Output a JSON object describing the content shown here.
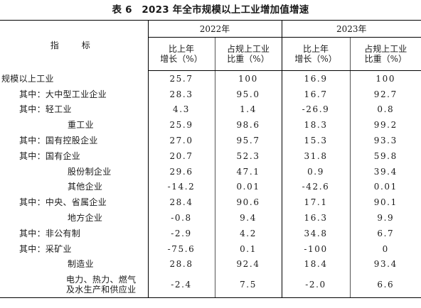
{
  "title": "表 6　2023 年全市规模以上工业增加值增速",
  "header": {
    "indicator": "指　标",
    "year1": "2022年",
    "year2": "2023年",
    "growth_line1": "比上年",
    "growth_line2": "增长（%）",
    "share_line1": "占规上工业",
    "share_line2": "比重（%）"
  },
  "rows": [
    {
      "label": "规模以上工业",
      "growth2022": "25.7",
      "share2022": "100",
      "growth2023": "16.9",
      "share2023": "100"
    },
    {
      "label": "其中：大中型工业企业",
      "growth2022": "28.3",
      "share2022": "95.0",
      "growth2023": "16.7",
      "share2023": "92.7"
    },
    {
      "label": "其中：轻工业",
      "growth2022": "4.3",
      "share2022": "1.4",
      "growth2023": "-26.9",
      "share2023": "0.8"
    },
    {
      "label": "重工业",
      "growth2022": "25.9",
      "share2022": "98.6",
      "growth2023": "18.3",
      "share2023": "99.2"
    },
    {
      "label": "其中：国有控股企业",
      "growth2022": "27.0",
      "share2022": "95.7",
      "growth2023": "15.3",
      "share2023": "93.3"
    },
    {
      "label": "其中：国有企业",
      "growth2022": "20.7",
      "share2022": "52.3",
      "growth2023": "31.8",
      "share2023": "59.8"
    },
    {
      "label": "股份制企业",
      "growth2022": "29.6",
      "share2022": "47.1",
      "growth2023": "0.9",
      "share2023": "39.4"
    },
    {
      "label": "其他企业",
      "growth2022": "-14.2",
      "share2022": "0.01",
      "growth2023": "-42.6",
      "share2023": "0.01"
    },
    {
      "label": "其中：中央、省属企业",
      "growth2022": "28.4",
      "share2022": "90.6",
      "growth2023": "17.1",
      "share2023": "90.1"
    },
    {
      "label": "地方企业",
      "growth2022": "-0.8",
      "share2022": "9.4",
      "growth2023": "16.3",
      "share2023": "9.9"
    },
    {
      "label": "其中：非公有制",
      "growth2022": "-2.9",
      "share2022": "4.2",
      "growth2023": "34.8",
      "share2023": "6.7"
    },
    {
      "label": "其中：采矿业",
      "growth2022": "-75.6",
      "share2022": "0.1",
      "growth2023": "-100",
      "share2023": "0"
    },
    {
      "label": "制造业",
      "growth2022": "28.8",
      "share2022": "92.4",
      "growth2023": "18.4",
      "share2023": "93.4"
    },
    {
      "label": "电力、热力、燃气及水生产和供应业",
      "growth2022": "-2.4",
      "share2022": "7.5",
      "growth2023": "-2.0",
      "share2023": "6.6"
    }
  ]
}
